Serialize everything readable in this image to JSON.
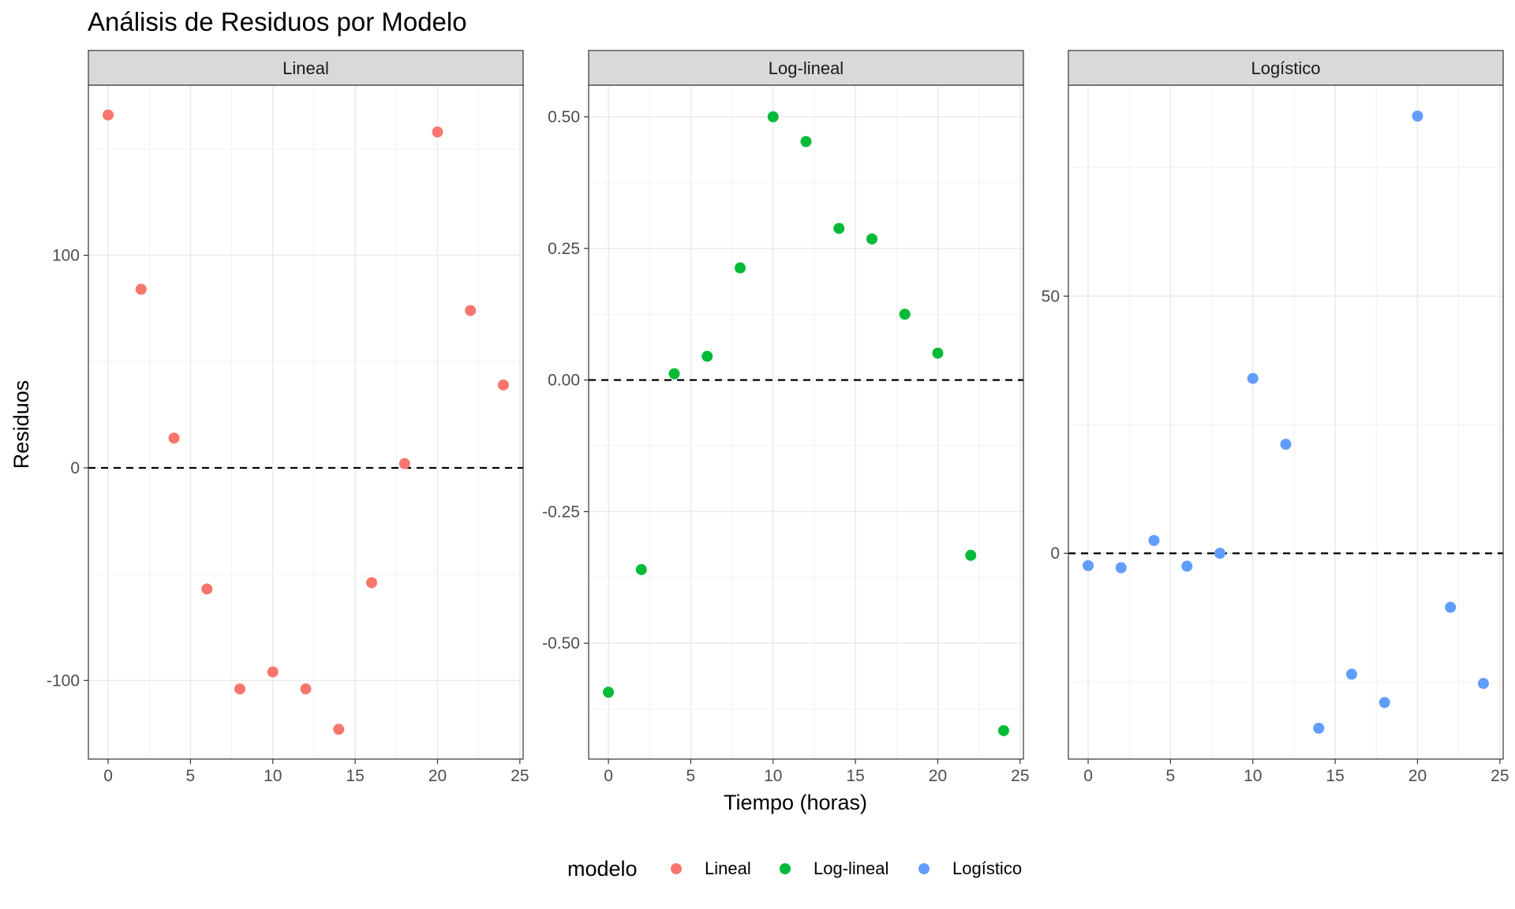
{
  "title": "Análisis de Residuos por Modelo",
  "chart_data": {
    "type": "scatter",
    "title": "Análisis de Residuos por Modelo",
    "xlabel": "Tiempo (horas)",
    "ylabel": "Residuos",
    "grid": true,
    "reference_line": {
      "y": 0,
      "style": "dashed"
    },
    "legend": {
      "title": "modelo",
      "position": "bottom"
    },
    "x_ticks": [
      0,
      5,
      10,
      15,
      20,
      25
    ],
    "xlim": [
      -1.2,
      25.2
    ],
    "panels": [
      {
        "name": "Lineal",
        "color": "#F8766D",
        "ylim": [
          -137,
          180
        ],
        "y_ticks": [
          -100,
          0,
          100
        ],
        "y_tick_labels": [
          "-100",
          "0",
          "100"
        ],
        "x": [
          0,
          2,
          4,
          6,
          8,
          10,
          12,
          14,
          16,
          18,
          20,
          22,
          24
        ],
        "y": [
          166,
          84,
          14,
          -57,
          -104,
          -96,
          -104,
          -123,
          -54,
          2,
          158,
          74,
          39
        ]
      },
      {
        "name": "Log-lineal",
        "color": "#00BA38",
        "ylim": [
          -0.72,
          0.56
        ],
        "y_ticks": [
          -0.5,
          -0.25,
          0,
          0.25,
          0.5
        ],
        "y_tick_labels": [
          "-0.50",
          "-0.25",
          "0.00",
          "0.25",
          "0.50"
        ],
        "x": [
          0,
          2,
          4,
          6,
          8,
          10,
          12,
          14,
          16,
          18,
          20,
          22,
          24
        ],
        "y": [
          -0.593,
          -0.36,
          0.012,
          0.045,
          0.213,
          0.5,
          0.453,
          0.288,
          0.268,
          0.125,
          0.051,
          -0.333,
          -0.666
        ]
      },
      {
        "name": "Logístico",
        "color": "#619CFF",
        "ylim": [
          -40,
          91
        ],
        "y_ticks": [
          0,
          50
        ],
        "y_tick_labels": [
          "0",
          "50"
        ],
        "x": [
          0,
          2,
          4,
          6,
          8,
          10,
          12,
          14,
          16,
          18,
          20,
          22,
          24
        ],
        "y": [
          -2.4,
          -2.8,
          2.5,
          -2.5,
          0,
          34,
          21.2,
          -34,
          -23.5,
          -29,
          85,
          -10.5,
          -25.3
        ]
      }
    ]
  }
}
